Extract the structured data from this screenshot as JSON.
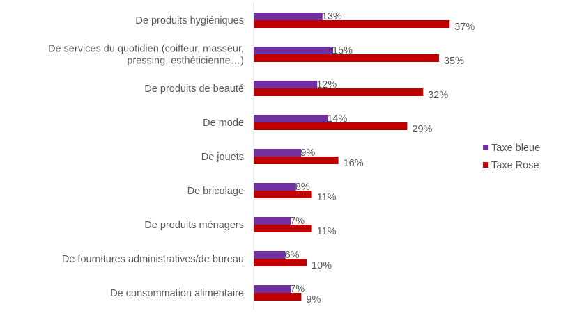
{
  "chart_data": {
    "type": "bar",
    "orientation": "horizontal",
    "categories": [
      [
        "De produits hygiéniques"
      ],
      [
        "De services du quotidien (coiffeur, masseur,",
        "pressing, esthéticienne…)"
      ],
      [
        "De produits de beauté"
      ],
      [
        "De mode"
      ],
      [
        "De jouets"
      ],
      [
        "De bricolage"
      ],
      [
        "De produits ménagers"
      ],
      [
        "De fournitures administratives/de bureau"
      ],
      [
        "De consommation alimentaire"
      ]
    ],
    "series": [
      {
        "name": "Taxe bleue",
        "color": "#7030A0",
        "values": [
          13,
          15,
          12,
          14,
          9,
          8,
          7,
          6,
          7
        ],
        "labels": [
          "13%",
          "15%",
          "12%",
          "14%",
          "9%",
          "8%",
          "7%",
          "6%",
          "7%"
        ]
      },
      {
        "name": "Taxe Rose",
        "color": "#C00000",
        "values": [
          37,
          35,
          32,
          29,
          16,
          11,
          11,
          10,
          9
        ],
        "labels": [
          "37%",
          "35%",
          "32%",
          "29%",
          "16%",
          "11%",
          "11%",
          "10%",
          "9%"
        ]
      }
    ],
    "xlim": [
      0,
      40
    ],
    "legend": "right",
    "grid": false
  }
}
